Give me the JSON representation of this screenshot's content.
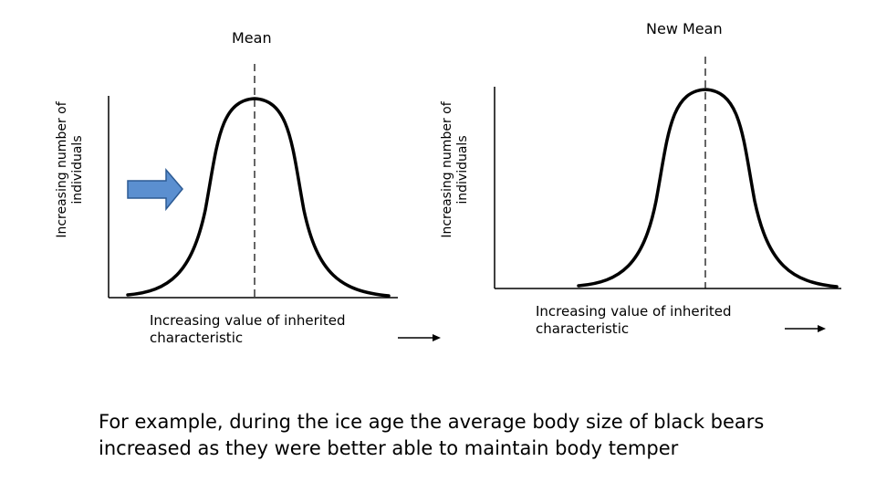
{
  "diagram": {
    "left": {
      "mean_label": "Mean",
      "y_label": "Increasing number of\nindividuals",
      "x_label": "Increasing value of inherited\ncharacteristic"
    },
    "right": {
      "mean_label": "New Mean",
      "y_label": "Increasing number of\nindividuals",
      "x_label": "Increasing value of inherited\ncharacteristic"
    },
    "shift_arrow_color": "#5b8fd0",
    "shift_arrow_icon": "right-arrow-icon"
  },
  "caption": "For example, during the ice age the average body size of black bears\nincreased as they were better able to maintain body temper"
}
